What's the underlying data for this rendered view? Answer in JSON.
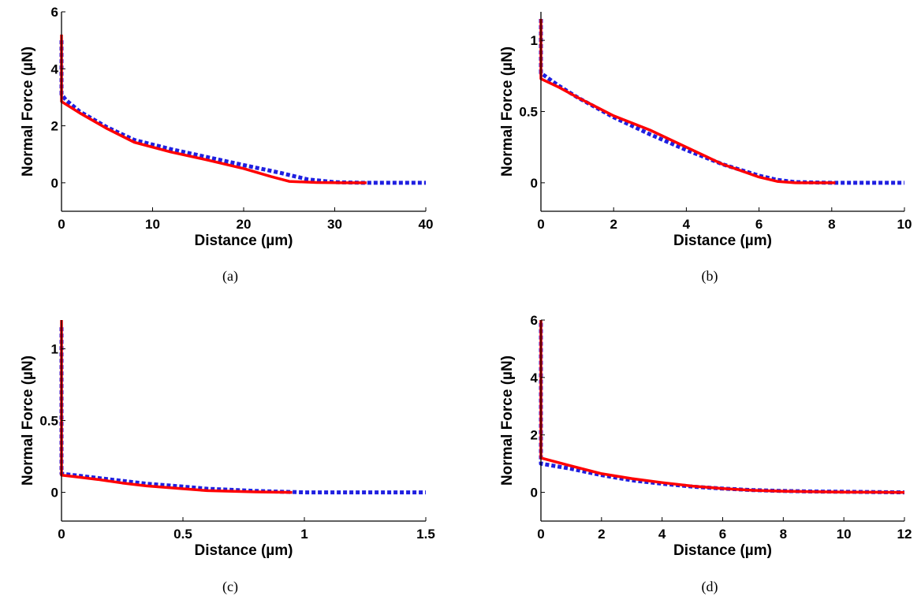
{
  "chart_data": [
    {
      "type": "line",
      "caption": "(a)",
      "xlabel": "Distance (µm)",
      "ylabel": "Normal Force (µN)",
      "xlim": [
        0,
        40
      ],
      "ylim": [
        -1,
        6
      ],
      "xticks": [
        0,
        10,
        20,
        30,
        40
      ],
      "xticklabels": [
        "0",
        "10",
        "20",
        "30",
        "40"
      ],
      "yticks": [
        0,
        2,
        4,
        6
      ],
      "yticklabels": [
        "0",
        "2",
        "4",
        "6"
      ],
      "series": [
        {
          "color": "#1f1fe0",
          "style": "dotted",
          "x": [
            0,
            0,
            0.5,
            2,
            5,
            8,
            12,
            16,
            20,
            24,
            27,
            30,
            33,
            36,
            40
          ],
          "y": [
            5.0,
            3.1,
            2.9,
            2.5,
            1.95,
            1.5,
            1.18,
            0.9,
            0.62,
            0.35,
            0.12,
            0.02,
            0,
            0,
            0
          ]
        },
        {
          "color": "#ff0000",
          "style": "solid",
          "x": [
            0,
            0,
            0,
            2,
            5,
            8,
            12,
            16,
            20,
            23,
            25,
            28,
            31,
            33.5
          ],
          "y": [
            5.2,
            5.0,
            2.85,
            2.45,
            1.9,
            1.42,
            1.08,
            0.8,
            0.5,
            0.22,
            0.05,
            0.01,
            0,
            0
          ]
        }
      ]
    },
    {
      "type": "line",
      "caption": "(b)",
      "xlabel": "Distance (µm)",
      "ylabel": "Normal Force (µN)",
      "xlim": [
        0,
        10
      ],
      "ylim": [
        -0.2,
        1.2
      ],
      "xticks": [
        0,
        2,
        4,
        6,
        8,
        10
      ],
      "xticklabels": [
        "0",
        "2",
        "4",
        "6",
        "8",
        "10"
      ],
      "yticks": [
        0,
        0.5,
        1
      ],
      "yticklabels": [
        "0",
        "0.5",
        "1"
      ],
      "series": [
        {
          "color": "#1f1fe0",
          "style": "dotted",
          "x": [
            0,
            0,
            0.5,
            1,
            2,
            3,
            4,
            5,
            6,
            6.5,
            7,
            8,
            9,
            10
          ],
          "y": [
            1.15,
            0.77,
            0.68,
            0.6,
            0.46,
            0.34,
            0.23,
            0.13,
            0.05,
            0.02,
            0.005,
            0,
            0,
            0
          ]
        },
        {
          "color": "#ff0000",
          "style": "solid",
          "x": [
            0,
            0,
            0.5,
            1,
            2,
            3,
            4,
            5,
            6,
            6.5,
            7,
            8.1
          ],
          "y": [
            1.15,
            0.73,
            0.67,
            0.6,
            0.47,
            0.37,
            0.25,
            0.13,
            0.04,
            0.01,
            0,
            0
          ]
        }
      ]
    },
    {
      "type": "line",
      "caption": "(c)",
      "xlabel": "Distance (µm)",
      "ylabel": "Normal Force (µN)",
      "xlim": [
        0,
        1.5
      ],
      "ylim": [
        -0.2,
        1.2
      ],
      "xticks": [
        0,
        0.5,
        1,
        1.5
      ],
      "xticklabels": [
        "0",
        "0.5",
        "1",
        "1.5"
      ],
      "yticks": [
        0,
        0.5,
        1
      ],
      "yticklabels": [
        "0",
        "0.5",
        "1"
      ],
      "series": [
        {
          "color": "#1f1fe0",
          "style": "dotted",
          "x": [
            0,
            0,
            0.05,
            0.15,
            0.25,
            0.35,
            0.5,
            0.6,
            0.8,
            1.0,
            1.2,
            1.5
          ],
          "y": [
            1.15,
            0.13,
            0.12,
            0.1,
            0.08,
            0.06,
            0.04,
            0.025,
            0.01,
            0,
            0,
            0
          ]
        },
        {
          "color": "#ff0000",
          "style": "solid",
          "x": [
            0,
            0,
            0.05,
            0.15,
            0.25,
            0.35,
            0.5,
            0.6,
            0.8,
            0.95
          ],
          "y": [
            1.2,
            0.12,
            0.11,
            0.09,
            0.065,
            0.045,
            0.025,
            0.012,
            0.003,
            0
          ]
        }
      ]
    },
    {
      "type": "line",
      "caption": "(d)",
      "xlabel": "Distance (µm)",
      "ylabel": "Normal Force (µN)",
      "xlim": [
        0,
        12
      ],
      "ylim": [
        -1,
        6
      ],
      "xticks": [
        0,
        2,
        4,
        6,
        8,
        10,
        12
      ],
      "xticklabels": [
        "0",
        "2",
        "4",
        "6",
        "8",
        "10",
        "12"
      ],
      "yticks": [
        0,
        2,
        4,
        6
      ],
      "yticklabels": [
        "0",
        "2",
        "4",
        "6"
      ],
      "series": [
        {
          "color": "#1f1fe0",
          "style": "dotted",
          "x": [
            0,
            0,
            1,
            2,
            3,
            4,
            5,
            6,
            7,
            8,
            9,
            10,
            11,
            12
          ],
          "y": [
            5.9,
            1.0,
            0.82,
            0.6,
            0.42,
            0.3,
            0.2,
            0.13,
            0.08,
            0.05,
            0.03,
            0.02,
            0.01,
            0
          ]
        },
        {
          "color": "#ff0000",
          "style": "solid",
          "x": [
            0,
            0,
            1,
            2,
            3,
            4,
            5,
            6,
            7,
            8,
            9,
            10,
            11,
            12
          ],
          "y": [
            6.0,
            1.2,
            0.92,
            0.65,
            0.48,
            0.34,
            0.22,
            0.13,
            0.07,
            0.04,
            0.02,
            0.01,
            0.005,
            0
          ]
        }
      ]
    }
  ]
}
